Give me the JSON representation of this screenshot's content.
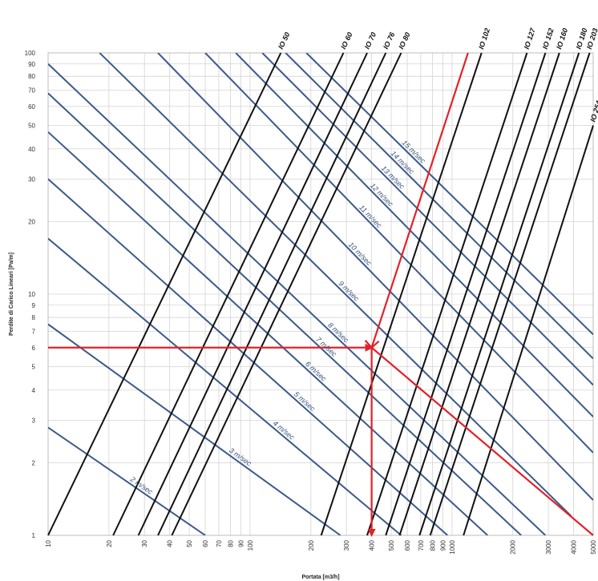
{
  "chart_data": {
    "type": "line",
    "xlabel": "Portata [m3/h]",
    "ylabel": "Perdite di Carico Lineari [Pa/m]",
    "xscale": "log",
    "yscale": "log",
    "xlim": [
      10,
      5000
    ],
    "ylim": [
      1,
      100
    ],
    "grid": true,
    "x_ticks": [
      "10",
      "20",
      "30",
      "40",
      "50",
      "60",
      "70",
      "80",
      "90",
      "100",
      "200",
      "300",
      "400",
      "500",
      "600",
      "700",
      "800",
      "900",
      "1000",
      "2000",
      "3000",
      "4000",
      "5000"
    ],
    "y_ticks": [
      "1",
      "2",
      "3",
      "4",
      "5",
      "6",
      "7",
      "8",
      "9",
      "10",
      "20",
      "30",
      "40",
      "50",
      "60",
      "70",
      "80",
      "90",
      "100"
    ],
    "diameter_series": [
      {
        "name": "IO 50",
        "x": [
          10,
          142
        ],
        "y": [
          1,
          100
        ]
      },
      {
        "name": "IO 60",
        "x": [
          21,
          290
        ],
        "y": [
          1,
          100
        ]
      },
      {
        "name": "IO 70",
        "x": [
          28,
          380
        ],
        "y": [
          1,
          100
        ]
      },
      {
        "name": "IO 76",
        "x": [
          35,
          470
        ],
        "y": [
          1,
          100
        ]
      },
      {
        "name": "IO 80",
        "x": [
          41,
          560
        ],
        "y": [
          1,
          100
        ]
      },
      {
        "name": "IO 102",
        "x": [
          225,
          1400
        ],
        "y": [
          1,
          100
        ]
      },
      {
        "name": "IO 127",
        "x": [
          380,
          2350
        ],
        "y": [
          1,
          100
        ]
      },
      {
        "name": "IO 152",
        "x": [
          470,
          2900
        ],
        "y": [
          1,
          100
        ]
      },
      {
        "name": "IO 160",
        "x": [
          550,
          3400
        ],
        "y": [
          1,
          100
        ]
      },
      {
        "name": "IO 180",
        "x": [
          690,
          4250
        ],
        "y": [
          1,
          100
        ]
      },
      {
        "name": "IO 203",
        "x": [
          780,
          4800
        ],
        "y": [
          1,
          100
        ]
      },
      {
        "name": "IO 254",
        "x": [
          1140,
          5000
        ],
        "y": [
          1,
          50
        ]
      }
    ],
    "velocity_series": [
      {
        "name": "2 m/sec",
        "x": [
          10,
          60
        ],
        "y": [
          2.8,
          1
        ]
      },
      {
        "name": "3 m/sec",
        "x": [
          10,
          280
        ],
        "y": [
          7.5,
          1
        ]
      },
      {
        "name": "4 m/sec",
        "x": [
          10,
          560
        ],
        "y": [
          17,
          1
        ]
      },
      {
        "name": "5 m/sec",
        "x": [
          10,
          950
        ],
        "y": [
          30,
          1
        ]
      },
      {
        "name": "6 m/sec",
        "x": [
          10,
          1500
        ],
        "y": [
          47,
          1
        ]
      },
      {
        "name": "7 m/sec",
        "x": [
          10,
          2200
        ],
        "y": [
          68,
          1
        ]
      },
      {
        "name": "8 m/sec",
        "x": [
          10,
          2900
        ],
        "y": [
          90,
          1
        ]
      },
      {
        "name": "9 m/sec",
        "x": [
          18,
          3900
        ],
        "y": [
          100,
          1.2
        ]
      },
      {
        "name": "10 m/sec",
        "x": [
          35,
          5000
        ],
        "y": [
          100,
          1.4
        ]
      },
      {
        "name": "11 m/sec",
        "x": [
          60,
          5000
        ],
        "y": [
          100,
          2.2
        ]
      },
      {
        "name": "12 m/sec",
        "x": [
          85,
          5000
        ],
        "y": [
          100,
          3.1
        ]
      },
      {
        "name": "13 m/sec",
        "x": [
          115,
          5000
        ],
        "y": [
          100,
          4.2
        ]
      },
      {
        "name": "14 m/sec",
        "x": [
          150,
          5000
        ],
        "y": [
          100,
          5.4
        ]
      },
      {
        "name": "15 m/sec",
        "x": [
          190,
          5000
        ],
        "y": [
          100,
          6.8
        ]
      }
    ],
    "example_lines": [
      {
        "x": [
          10,
          400
        ],
        "y": [
          6,
          6
        ]
      },
      {
        "x": [
          400,
          400
        ],
        "y": [
          6,
          1
        ]
      },
      {
        "x": [
          400,
          1200
        ],
        "y": [
          6,
          100
        ]
      },
      {
        "x": [
          400,
          5000
        ],
        "y": [
          6,
          1
        ]
      }
    ]
  },
  "colors": {
    "diameter_line": "#111111",
    "velocity_line": "#3b5a8a",
    "velocity_label": "#35507a",
    "example_line": "#e0222a",
    "grid": "#d4d4d4"
  }
}
